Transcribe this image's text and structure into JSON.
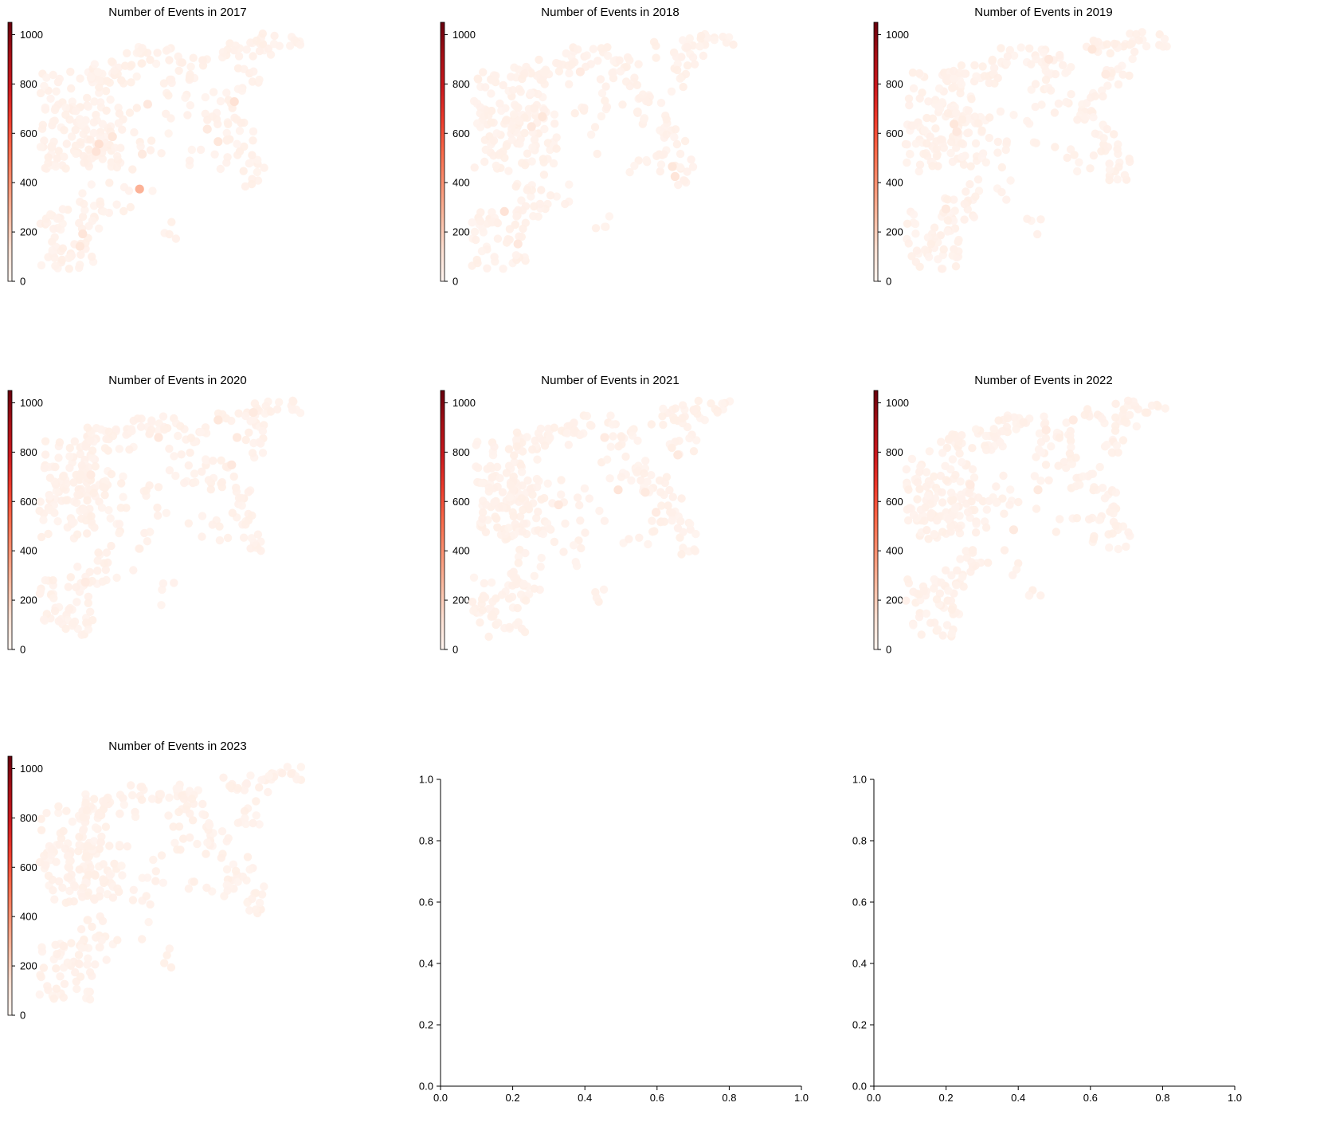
{
  "colormap": {
    "name": "Reds",
    "stops": [
      "#fff5f0",
      "#fee0d2",
      "#fcbba1",
      "#fc9272",
      "#fb6a4a",
      "#ef3b2c",
      "#cb181d",
      "#a50f15",
      "#67000d"
    ]
  },
  "chart_data": [
    {
      "type": "scatter",
      "title": "Number of Events in 2017",
      "colorbar": {
        "range": [
          0,
          1050
        ],
        "ticks": [
          0,
          200,
          400,
          600,
          800,
          1000
        ]
      },
      "legend": "none",
      "highlights": [
        {
          "x": 0.33,
          "y": 0.37,
          "v": 290
        },
        {
          "x": 0.18,
          "y": 0.55,
          "v": 130
        },
        {
          "x": 0.17,
          "y": 0.52,
          "v": 110
        },
        {
          "x": 0.68,
          "y": 0.72,
          "v": 120
        },
        {
          "x": 0.23,
          "y": 0.58,
          "v": 90
        },
        {
          "x": 0.36,
          "y": 0.71,
          "v": 80
        },
        {
          "x": 0.62,
          "y": 0.56,
          "v": 90
        },
        {
          "x": 0.12,
          "y": 0.19,
          "v": 100
        },
        {
          "x": 0.11,
          "y": 0.14,
          "v": 90
        },
        {
          "x": 0.34,
          "y": 0.51,
          "v": 70
        },
        {
          "x": 0.58,
          "y": 0.61,
          "v": 70
        }
      ]
    },
    {
      "type": "scatter",
      "title": "Number of Events in 2018",
      "colorbar": {
        "range": [
          0,
          1050
        ],
        "ticks": [
          0,
          200,
          400,
          600,
          800,
          1000
        ]
      },
      "legend": "none",
      "highlights": [
        {
          "x": 0.08,
          "y": 0.28,
          "v": 110
        },
        {
          "x": 0.22,
          "y": 0.66,
          "v": 90
        },
        {
          "x": 0.18,
          "y": 0.62,
          "v": 80
        },
        {
          "x": 0.7,
          "y": 0.46,
          "v": 90
        },
        {
          "x": 0.71,
          "y": 0.42,
          "v": 100
        },
        {
          "x": 0.13,
          "y": 0.15,
          "v": 80
        },
        {
          "x": 0.36,
          "y": 0.84,
          "v": 60
        }
      ]
    },
    {
      "type": "scatter",
      "title": "Number of Events in 2019",
      "colorbar": {
        "range": [
          0,
          1050
        ],
        "ticks": [
          0,
          200,
          400,
          600,
          800,
          1000
        ]
      },
      "legend": "none",
      "highlights": [
        {
          "x": 0.14,
          "y": 0.63,
          "v": 90
        },
        {
          "x": 0.15,
          "y": 0.6,
          "v": 80
        },
        {
          "x": 0.49,
          "y": 0.89,
          "v": 80
        },
        {
          "x": 0.65,
          "y": 0.93,
          "v": 90
        },
        {
          "x": 0.7,
          "y": 0.83,
          "v": 60
        },
        {
          "x": 0.11,
          "y": 0.29,
          "v": 70
        }
      ]
    },
    {
      "type": "scatter",
      "title": "Number of Events in 2020",
      "colorbar": {
        "range": [
          0,
          1050
        ],
        "ticks": [
          0,
          200,
          400,
          600,
          800,
          1000
        ]
      },
      "legend": "none",
      "highlights": [
        {
          "x": 0.4,
          "y": 0.85,
          "v": 80
        },
        {
          "x": 0.62,
          "y": 0.92,
          "v": 90
        },
        {
          "x": 0.67,
          "y": 0.74,
          "v": 80
        },
        {
          "x": 0.69,
          "y": 0.85,
          "v": 70
        },
        {
          "x": 0.13,
          "y": 0.27,
          "v": 60
        },
        {
          "x": 0.75,
          "y": 0.95,
          "v": 70
        },
        {
          "x": 0.15,
          "y": 0.7,
          "v": 60
        }
      ]
    },
    {
      "type": "scatter",
      "title": "Number of Events in 2021",
      "colorbar": {
        "range": [
          0,
          1050
        ],
        "ticks": [
          0,
          200,
          400,
          600,
          800,
          1000
        ]
      },
      "legend": "none",
      "highlights": [
        {
          "x": 0.5,
          "y": 0.64,
          "v": 100
        },
        {
          "x": 0.28,
          "y": 0.58,
          "v": 80
        },
        {
          "x": 0.6,
          "y": 0.63,
          "v": 70
        },
        {
          "x": 0.72,
          "y": 0.78,
          "v": 70
        },
        {
          "x": 0.64,
          "y": 0.55,
          "v": 60
        },
        {
          "x": 0.45,
          "y": 0.85,
          "v": 60
        }
      ]
    },
    {
      "type": "scatter",
      "title": "Number of Events in 2022",
      "colorbar": {
        "range": [
          0,
          1050
        ],
        "ticks": [
          0,
          200,
          400,
          600,
          800,
          1000
        ]
      },
      "legend": "none",
      "highlights": [
        {
          "x": 0.45,
          "y": 0.64,
          "v": 70
        },
        {
          "x": 0.36,
          "y": 0.48,
          "v": 70
        },
        {
          "x": 0.48,
          "y": 0.88,
          "v": 60
        },
        {
          "x": 0.58,
          "y": 0.92,
          "v": 60
        },
        {
          "x": 0.2,
          "y": 0.66,
          "v": 60
        }
      ]
    },
    {
      "type": "scatter",
      "title": "Number of Events in 2023",
      "colorbar": {
        "range": [
          0,
          1050
        ],
        "ticks": [
          0,
          200,
          400,
          600,
          800,
          1000
        ]
      },
      "legend": "none",
      "highlights": []
    },
    {
      "type": "empty",
      "title": "",
      "xlim": [
        0,
        1
      ],
      "ylim": [
        0,
        1
      ],
      "xticks": [
        "0.0",
        "0.2",
        "0.4",
        "0.6",
        "0.8",
        "1.0"
      ],
      "yticks": [
        "0.0",
        "0.2",
        "0.4",
        "0.6",
        "0.8",
        "1.0"
      ]
    },
    {
      "type": "empty",
      "title": "",
      "xlim": [
        0,
        1
      ],
      "ylim": [
        0,
        1
      ],
      "xticks": [
        "0.0",
        "0.2",
        "0.4",
        "0.6",
        "0.8",
        "1.0"
      ],
      "yticks": [
        "0.0",
        "0.2",
        "0.4",
        "0.6",
        "0.8",
        "1.0"
      ]
    }
  ]
}
